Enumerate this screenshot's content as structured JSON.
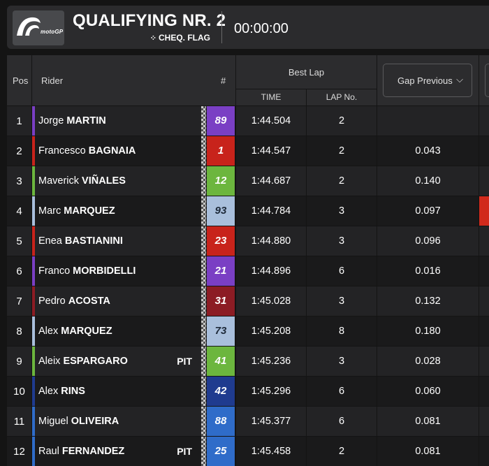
{
  "header": {
    "logo_text": "motoGP",
    "session_title": "QUALIFYING NR. 2",
    "flag_status": "CHEQ. FLAG",
    "flag_icon": "checkered-flag-icon",
    "clock": "00:00:00"
  },
  "columns": {
    "pos": "Pos",
    "rider": "Rider",
    "number": "#",
    "best_lap": "Best Lap",
    "time": "TIME",
    "lap_no": "LAP No.",
    "gap_select": "Gap Previous"
  },
  "colors": {
    "background": "#141414",
    "row_even": "#232325",
    "row_odd": "#1a1a1b",
    "header_bg": "#2c2c2e",
    "pos4_marker": "#d12a1c"
  },
  "rows": [
    {
      "pos": "1",
      "first": "Jorge",
      "last": "MARTIN",
      "number": "89",
      "time": "1:44.504",
      "lap": "2",
      "gap": "",
      "pit": "",
      "team_color": "#7a3fc4",
      "number_bg": "#7a3fc4",
      "number_color": "#ffffff"
    },
    {
      "pos": "2",
      "first": "Francesco",
      "last": "BAGNAIA",
      "number": "1",
      "time": "1:44.547",
      "lap": "2",
      "gap": "0.043",
      "pit": "",
      "team_color": "#c8231b",
      "number_bg": "#c8231b",
      "number_color": "#ffffff"
    },
    {
      "pos": "3",
      "first": "Maverick",
      "last": "VIÑALES",
      "number": "12",
      "time": "1:44.687",
      "lap": "2",
      "gap": "0.140",
      "pit": "",
      "team_color": "#6cb63e",
      "number_bg": "#6cb63e",
      "number_color": "#ffffff"
    },
    {
      "pos": "4",
      "first": "Marc",
      "last": "MARQUEZ",
      "number": "93",
      "time": "1:44.784",
      "lap": "3",
      "gap": "0.097",
      "pit": "",
      "team_color": "#a9bfdc",
      "number_bg": "#a9bfdc",
      "number_color": "#1e2a3a"
    },
    {
      "pos": "5",
      "first": "Enea",
      "last": "BASTIANINI",
      "number": "23",
      "time": "1:44.880",
      "lap": "3",
      "gap": "0.096",
      "pit": "",
      "team_color": "#c8231b",
      "number_bg": "#c8231b",
      "number_color": "#ffffff"
    },
    {
      "pos": "6",
      "first": "Franco",
      "last": "MORBIDELLI",
      "number": "21",
      "time": "1:44.896",
      "lap": "6",
      "gap": "0.016",
      "pit": "",
      "team_color": "#7a3fc4",
      "number_bg": "#7a3fc4",
      "number_color": "#ffffff"
    },
    {
      "pos": "7",
      "first": "Pedro",
      "last": "ACOSTA",
      "number": "31",
      "time": "1:45.028",
      "lap": "3",
      "gap": "0.132",
      "pit": "",
      "team_color": "#8c1c24",
      "number_bg": "#8c1c24",
      "number_color": "#ffffff"
    },
    {
      "pos": "8",
      "first": "Alex",
      "last": "MARQUEZ",
      "number": "73",
      "time": "1:45.208",
      "lap": "8",
      "gap": "0.180",
      "pit": "",
      "team_color": "#a9bfdc",
      "number_bg": "#a9bfdc",
      "number_color": "#1e2a3a"
    },
    {
      "pos": "9",
      "first": "Aleix",
      "last": "ESPARGARO",
      "number": "41",
      "time": "1:45.236",
      "lap": "3",
      "gap": "0.028",
      "pit": "PIT",
      "team_color": "#6cb63e",
      "number_bg": "#6cb63e",
      "number_color": "#ffffff"
    },
    {
      "pos": "10",
      "first": "Alex",
      "last": "RINS",
      "number": "42",
      "time": "1:45.296",
      "lap": "6",
      "gap": "0.060",
      "pit": "",
      "team_color": "#1f3b8f",
      "number_bg": "#1f3b8f",
      "number_color": "#ffffff"
    },
    {
      "pos": "11",
      "first": "Miguel",
      "last": "OLIVEIRA",
      "number": "88",
      "time": "1:45.377",
      "lap": "6",
      "gap": "0.081",
      "pit": "",
      "team_color": "#2f6cc9",
      "number_bg": "#2f6cc9",
      "number_color": "#ffffff"
    },
    {
      "pos": "12",
      "first": "Raul",
      "last": "FERNANDEZ",
      "number": "25",
      "time": "1:45.458",
      "lap": "2",
      "gap": "0.081",
      "pit": "PIT",
      "team_color": "#2f6cc9",
      "number_bg": "#2f6cc9",
      "number_color": "#ffffff"
    }
  ]
}
